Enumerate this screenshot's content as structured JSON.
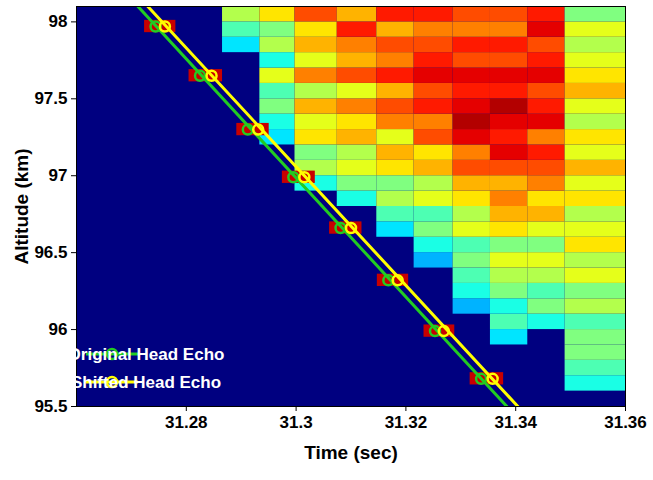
{
  "chart_data": {
    "type": "line",
    "xlabel": "Time (sec)",
    "ylabel": "Altitude (km)",
    "xlim": [
      31.26,
      31.36
    ],
    "xticks": [
      31.28,
      31.3,
      31.32,
      31.34,
      31.36
    ],
    "ylim": [
      95.5,
      98.1
    ],
    "yticks": [
      95.5,
      96,
      96.5,
      97,
      97.5,
      98
    ],
    "legend": "lower left",
    "series": [
      {
        "name": "Original Head Echo",
        "color": "#22cc22",
        "marker": "o",
        "line_style": "solid",
        "x": [
          31.2744,
          31.2825,
          31.2912,
          31.2995,
          31.3081,
          31.3168,
          31.3253,
          31.3337
        ],
        "y": [
          97.97,
          97.65,
          97.3,
          96.99,
          96.66,
          96.32,
          95.99,
          95.68
        ],
        "line_x": [
          31.2712,
          31.3384
        ],
        "line_y": [
          98.1,
          95.5
        ]
      },
      {
        "name": "Shifted Head Echo",
        "color": "#ffff00",
        "marker": "o",
        "line_style": "solid",
        "x": [
          31.2761,
          31.2846,
          31.2931,
          31.3015,
          31.31,
          31.3185,
          31.3269,
          31.3358
        ],
        "y": [
          97.97,
          97.65,
          97.3,
          96.99,
          96.66,
          96.32,
          95.99,
          95.68
        ],
        "line_x": [
          31.273,
          31.3404
        ],
        "line_y": [
          98.1,
          95.5
        ]
      }
    ],
    "head_echo": {
      "color": "#c80000",
      "time_start": [
        31.2724,
        31.2805,
        31.2892,
        31.2975,
        31.3061,
        31.3148,
        31.3233,
        31.3317
      ],
      "time_end": [
        31.2781,
        31.2866,
        31.2951,
        31.3035,
        31.312,
        31.3205,
        31.3289,
        31.3378
      ],
      "altitude_low": [
        97.93,
        97.61,
        97.26,
        96.95,
        96.62,
        96.28,
        95.95,
        95.64
      ],
      "altitude_high": [
        98.01,
        97.69,
        97.34,
        97.03,
        96.7,
        96.36,
        96.03,
        95.72
      ]
    },
    "trail": {
      "color_range": [
        0,
        1
      ],
      "time_edges": [
        31.2866,
        31.2934,
        31.2998,
        31.3075,
        31.3147,
        31.3215,
        31.3286,
        31.3354,
        31.3422,
        31.349,
        31.36
      ],
      "altitude_edges": [
        95.5,
        95.6,
        95.7,
        95.8,
        95.9,
        96.0,
        96.1,
        96.2,
        96.3,
        96.4,
        96.5,
        96.6,
        96.7,
        96.8,
        96.9,
        97.0,
        97.1,
        97.2,
        97.3,
        97.4,
        97.5,
        97.6,
        97.7,
        97.8,
        97.9,
        98.0,
        98.1
      ],
      "intensity": [
        [
          null,
          null,
          null,
          null,
          null,
          null,
          null,
          null,
          null,
          null,
          null,
          null,
          null,
          null,
          null,
          null,
          null,
          null,
          null,
          null,
          null,
          null,
          null,
          0.35,
          0.45,
          0.55
        ],
        [
          null,
          null,
          null,
          null,
          null,
          null,
          null,
          null,
          null,
          null,
          null,
          null,
          null,
          null,
          null,
          null,
          null,
          0.35,
          0.4,
          0.5,
          0.45,
          0.6,
          0.4,
          0.55,
          0.5,
          0.65
        ],
        [
          null,
          null,
          null,
          null,
          null,
          null,
          null,
          null,
          null,
          null,
          null,
          null,
          null,
          null,
          0.4,
          0.55,
          0.5,
          0.65,
          0.6,
          0.7,
          0.55,
          0.75,
          0.6,
          0.7,
          0.65,
          0.8
        ],
        [
          null,
          null,
          null,
          null,
          null,
          null,
          null,
          null,
          null,
          null,
          null,
          null,
          null,
          0.4,
          0.5,
          0.6,
          0.55,
          0.7,
          0.65,
          0.75,
          0.6,
          0.8,
          0.7,
          0.75,
          0.85,
          0.7
        ],
        [
          null,
          null,
          null,
          null,
          null,
          null,
          null,
          null,
          null,
          null,
          null,
          0.35,
          0.45,
          0.55,
          0.5,
          0.65,
          0.7,
          0.6,
          0.75,
          0.8,
          0.7,
          0.85,
          0.75,
          0.8,
          0.7,
          0.85
        ],
        [
          null,
          null,
          null,
          null,
          null,
          null,
          null,
          null,
          null,
          0.3,
          0.4,
          0.5,
          0.45,
          0.6,
          0.55,
          0.7,
          0.65,
          0.8,
          0.75,
          0.85,
          0.8,
          0.9,
          0.85,
          0.8,
          0.75,
          0.85
        ],
        [
          null,
          null,
          null,
          null,
          null,
          null,
          0.3,
          0.4,
          0.45,
          0.5,
          0.45,
          0.6,
          0.55,
          0.65,
          0.7,
          0.8,
          0.75,
          0.9,
          0.95,
          0.9,
          0.85,
          0.9,
          0.8,
          0.85,
          0.75,
          0.8
        ],
        [
          null,
          null,
          null,
          null,
          0.35,
          0.45,
          0.4,
          0.5,
          0.55,
          0.6,
          0.5,
          0.65,
          0.7,
          0.75,
          0.7,
          0.8,
          0.9,
          0.85,
          0.9,
          0.95,
          0.85,
          0.9,
          0.8,
          0.85,
          0.75,
          0.8
        ],
        [
          null,
          null,
          null,
          null,
          null,
          0.4,
          0.5,
          0.45,
          0.55,
          0.6,
          0.5,
          0.6,
          0.7,
          0.65,
          0.75,
          0.8,
          0.85,
          0.75,
          0.9,
          0.85,
          0.8,
          0.9,
          0.85,
          0.8,
          0.9,
          0.85
        ],
        [
          null,
          0.4,
          0.45,
          0.5,
          0.5,
          0.45,
          0.55,
          0.5,
          0.6,
          0.55,
          0.65,
          0.6,
          0.55,
          0.65,
          0.6,
          0.7,
          0.6,
          0.65,
          0.55,
          0.6,
          0.7,
          0.65,
          0.6,
          0.55,
          0.6,
          0.5
        ]
      ]
    }
  }
}
